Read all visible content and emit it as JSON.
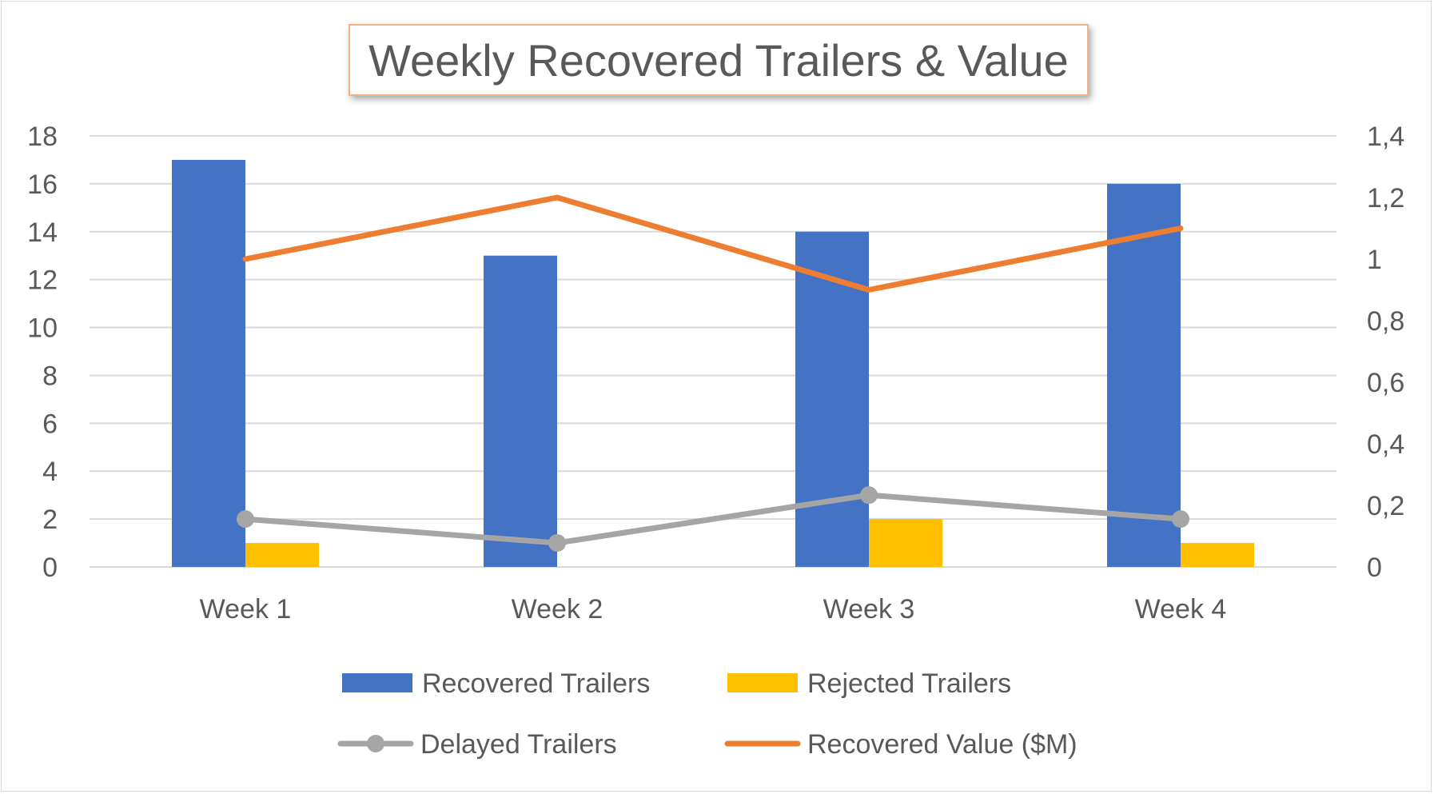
{
  "chart_data": {
    "type": "bar",
    "title": "Weekly Recovered Trailers & Value",
    "categories": [
      "Week 1",
      "Week 2",
      "Week 3",
      "Week 4"
    ],
    "series": [
      {
        "name": "Recovered Trailers",
        "type": "bar",
        "axis": "left",
        "color": "#4472c4",
        "values": [
          17,
          13,
          14,
          16
        ]
      },
      {
        "name": "Rejected Trailers",
        "type": "bar",
        "axis": "left",
        "color": "#ffc000",
        "values": [
          1,
          0,
          2,
          1
        ]
      },
      {
        "name": "Delayed Trailers",
        "type": "line",
        "marker": "circle",
        "axis": "left",
        "color": "#a5a5a5",
        "values": [
          2,
          1,
          3,
          2
        ]
      },
      {
        "name": "Recovered Value ($M)",
        "type": "line",
        "axis": "right",
        "color": "#ed7d31",
        "values": [
          1.0,
          1.2,
          0.9,
          1.1
        ]
      }
    ],
    "y_left": {
      "ylim": [
        0,
        18
      ],
      "ticks": [
        "0",
        "2",
        "4",
        "6",
        "8",
        "10",
        "12",
        "14",
        "16",
        "18"
      ]
    },
    "y_right": {
      "ylim": [
        0,
        1.4
      ],
      "ticks": [
        "0",
        "0,2",
        "0,4",
        "0,6",
        "0,8",
        "1",
        "1,2",
        "1,4"
      ]
    },
    "grid": true,
    "legend": "bottom",
    "xlabel": "",
    "ylabel": ""
  }
}
